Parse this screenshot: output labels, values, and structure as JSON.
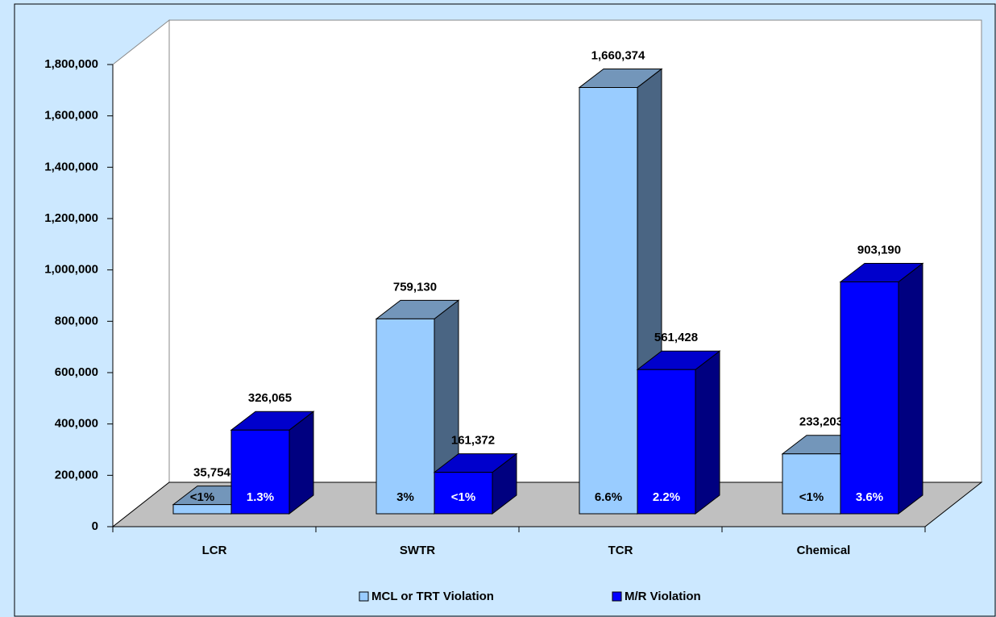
{
  "chart_data": {
    "type": "bar3d",
    "categories": [
      "LCR",
      "SWTR",
      "TCR",
      "Chemical"
    ],
    "series": [
      {
        "name": "MCL or TRT Violation",
        "color": "#99ccff",
        "top_color": "#7396ba",
        "side_color": "#4a6583",
        "values": [
          35754,
          759130,
          1660374,
          233203
        ],
        "value_labels": [
          "35,754",
          "759,130",
          "1,660,374",
          "233,203"
        ],
        "bar_annotations": [
          "<1%",
          "3%",
          "6.6%",
          "<1%"
        ]
      },
      {
        "name": "M/R Violation",
        "color": "#0000ff",
        "top_color": "#0000cc",
        "side_color": "#000080",
        "values": [
          326065,
          161372,
          561428,
          903190
        ],
        "value_labels": [
          "326,065",
          "161,372",
          "561,428",
          "903,190"
        ],
        "bar_annotations": [
          "1.3%",
          "<1%",
          "2.2%",
          "3.6%"
        ]
      }
    ],
    "ylim": [
      0,
      1800000
    ],
    "yticks": [
      0,
      {
        "value": 200000,
        "label": "200,000"
      },
      {
        "value": 400000,
        "label": "400,000"
      },
      {
        "value": 600000,
        "label": "600,000"
      },
      {
        "value": 800000,
        "label": "800,000"
      },
      {
        "value": 1000000,
        "label": "1,000,000"
      },
      {
        "value": 1200000,
        "label": "1,200,000"
      },
      {
        "value": 1400000,
        "label": "1,400,000"
      },
      {
        "value": 1600000,
        "label": "1,600,000"
      },
      {
        "value": 1800000,
        "label": "1,800,000"
      }
    ],
    "legend": "bottom"
  }
}
